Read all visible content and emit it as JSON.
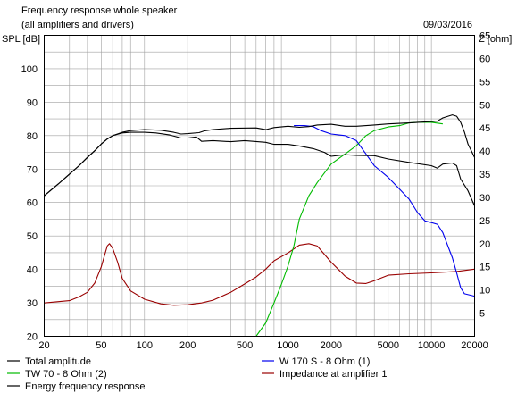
{
  "chart_data": {
    "type": "line",
    "title": "Frequency response whole speaker",
    "subtitle": "(all amplifiers and drivers)",
    "date": "09/03/2016",
    "xscale": "log",
    "xlim": [
      20,
      20000
    ],
    "x_tick_labels": [
      "20",
      "50",
      "100",
      "200",
      "500",
      "1000",
      "2000",
      "5000",
      "10000",
      "20000"
    ],
    "ylabel": "SPL [dB]",
    "ylim": [
      20,
      110
    ],
    "y_tick_labels": [
      "20",
      "30",
      "40",
      "50",
      "60",
      "70",
      "80",
      "90",
      "100"
    ],
    "y2label": "Z [ohm]",
    "y2lim": [
      0,
      65
    ],
    "y2_tick_labels": [
      "5",
      "10",
      "15",
      "20",
      "25",
      "30",
      "35",
      "40",
      "45",
      "50",
      "55",
      "60",
      "65"
    ],
    "grid": true,
    "legend_position": "bottom",
    "series": [
      {
        "name": "Total amplitude",
        "color": "#000000",
        "axis": "left",
        "points": [
          [
            20,
            62
          ],
          [
            25,
            65.5
          ],
          [
            30,
            68.5
          ],
          [
            35,
            71
          ],
          [
            40,
            73.5
          ],
          [
            45,
            75.5
          ],
          [
            50,
            77.5
          ],
          [
            55,
            79
          ],
          [
            60,
            80
          ],
          [
            70,
            81
          ],
          [
            80,
            81.5
          ],
          [
            100,
            81.8
          ],
          [
            130,
            81.6
          ],
          [
            160,
            81
          ],
          [
            180,
            80.5
          ],
          [
            200,
            80.6
          ],
          [
            240,
            80.9
          ],
          [
            260,
            81.4
          ],
          [
            300,
            81.8
          ],
          [
            400,
            82.2
          ],
          [
            600,
            82.3
          ],
          [
            700,
            81.8
          ],
          [
            800,
            82.4
          ],
          [
            1000,
            82.8
          ],
          [
            1200,
            82.5
          ],
          [
            1400,
            82.7
          ],
          [
            1600,
            83.2
          ],
          [
            2000,
            83.4
          ],
          [
            2500,
            82.8
          ],
          [
            3000,
            82.8
          ],
          [
            4000,
            83.2
          ],
          [
            5000,
            83.5
          ],
          [
            7000,
            83.8
          ],
          [
            10000,
            84.2
          ],
          [
            11000,
            84.3
          ],
          [
            12000,
            85.3
          ],
          [
            14000,
            86.2
          ],
          [
            15000,
            85.8
          ],
          [
            16000,
            84
          ],
          [
            17000,
            81
          ],
          [
            18000,
            77.5
          ],
          [
            20000,
            73.5
          ]
        ]
      },
      {
        "name": "W 170 S - 8 Ohm (1)",
        "color": "#0000ee",
        "axis": "left",
        "points": [
          [
            1100,
            83
          ],
          [
            1300,
            83
          ],
          [
            1500,
            82.7
          ],
          [
            1700,
            81.5
          ],
          [
            2000,
            80.5
          ],
          [
            2500,
            80
          ],
          [
            3000,
            78.5
          ],
          [
            3500,
            74.5
          ],
          [
            4000,
            71
          ],
          [
            5000,
            67.5
          ],
          [
            6000,
            64
          ],
          [
            7000,
            61
          ],
          [
            8000,
            57
          ],
          [
            9000,
            54.5
          ],
          [
            10000,
            54
          ],
          [
            11000,
            53.5
          ],
          [
            12000,
            51
          ],
          [
            14000,
            43.5
          ],
          [
            15000,
            39
          ],
          [
            16000,
            34.5
          ],
          [
            17000,
            32.7
          ],
          [
            20000,
            32
          ]
        ]
      },
      {
        "name": "TW 70 - 8 Ohm (2)",
        "color": "#00bb00",
        "axis": "left",
        "points": [
          [
            600,
            20
          ],
          [
            700,
            24
          ],
          [
            800,
            30
          ],
          [
            900,
            35.5
          ],
          [
            1000,
            41
          ],
          [
            1100,
            47
          ],
          [
            1200,
            55
          ],
          [
            1400,
            62
          ],
          [
            1600,
            66
          ],
          [
            2000,
            71.5
          ],
          [
            2500,
            74.5
          ],
          [
            3000,
            77
          ],
          [
            3500,
            80
          ],
          [
            4000,
            81.5
          ],
          [
            5000,
            82.6
          ],
          [
            6000,
            83
          ],
          [
            7000,
            83.8
          ],
          [
            8000,
            84
          ],
          [
            10000,
            84
          ],
          [
            12000,
            83.5
          ]
        ]
      },
      {
        "name": "Impedance at amplifier 1",
        "color": "#990000",
        "axis": "right",
        "points": [
          [
            20,
            7.2
          ],
          [
            30,
            7.7
          ],
          [
            35,
            8.5
          ],
          [
            40,
            9.5
          ],
          [
            45,
            11.5
          ],
          [
            50,
            15
          ],
          [
            55,
            19.5
          ],
          [
            57,
            20
          ],
          [
            60,
            19
          ],
          [
            65,
            16
          ],
          [
            70,
            12.5
          ],
          [
            80,
            9.8
          ],
          [
            100,
            8
          ],
          [
            130,
            7
          ],
          [
            160,
            6.7
          ],
          [
            200,
            6.8
          ],
          [
            250,
            7.2
          ],
          [
            300,
            7.8
          ],
          [
            400,
            9.5
          ],
          [
            500,
            11.3
          ],
          [
            600,
            12.8
          ],
          [
            700,
            14.5
          ],
          [
            800,
            16.3
          ],
          [
            1000,
            18
          ],
          [
            1200,
            19.7
          ],
          [
            1400,
            20
          ],
          [
            1600,
            19.5
          ],
          [
            2000,
            16
          ],
          [
            2500,
            13
          ],
          [
            3000,
            11.5
          ],
          [
            3500,
            11.4
          ],
          [
            4000,
            12
          ],
          [
            5000,
            13.2
          ],
          [
            7000,
            13.5
          ],
          [
            10000,
            13.7
          ],
          [
            15000,
            14
          ],
          [
            20000,
            14.5
          ]
        ]
      },
      {
        "name": "Energy frequency response",
        "color": "#000000",
        "axis": "left",
        "points": [
          [
            20,
            62
          ],
          [
            25,
            65.5
          ],
          [
            30,
            68.5
          ],
          [
            35,
            71
          ],
          [
            40,
            73.5
          ],
          [
            45,
            75.5
          ],
          [
            50,
            77.5
          ],
          [
            55,
            79
          ],
          [
            60,
            80
          ],
          [
            70,
            80.8
          ],
          [
            80,
            81
          ],
          [
            100,
            81
          ],
          [
            120,
            80.8
          ],
          [
            150,
            80.2
          ],
          [
            180,
            79.3
          ],
          [
            200,
            79.3
          ],
          [
            230,
            79.6
          ],
          [
            250,
            78.3
          ],
          [
            300,
            78.5
          ],
          [
            400,
            78.2
          ],
          [
            500,
            78.5
          ],
          [
            700,
            78
          ],
          [
            800,
            77.4
          ],
          [
            1000,
            77.4
          ],
          [
            1200,
            76.9
          ],
          [
            1500,
            76.1
          ],
          [
            1800,
            75
          ],
          [
            2000,
            73.8
          ],
          [
            2500,
            74.3
          ],
          [
            3000,
            74.1
          ],
          [
            4000,
            74
          ],
          [
            5000,
            73
          ],
          [
            7000,
            72
          ],
          [
            10000,
            71
          ],
          [
            11000,
            70.3
          ],
          [
            12000,
            71.5
          ],
          [
            14000,
            71.8
          ],
          [
            15000,
            71
          ],
          [
            16000,
            67
          ],
          [
            18000,
            63.5
          ],
          [
            20000,
            59
          ]
        ]
      }
    ]
  }
}
